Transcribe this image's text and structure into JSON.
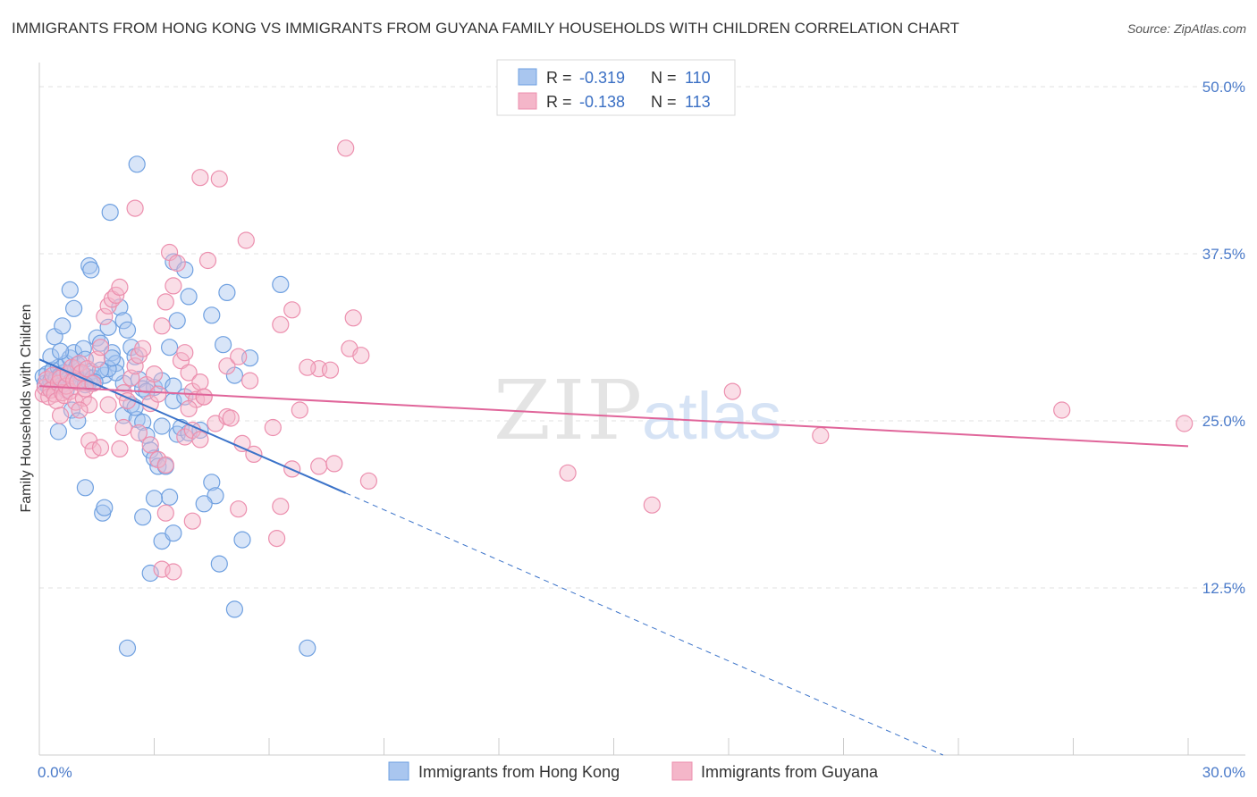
{
  "title": "IMMIGRANTS FROM HONG KONG VS IMMIGRANTS FROM GUYANA FAMILY HOUSEHOLDS WITH CHILDREN CORRELATION CHART",
  "source": "Source: ZipAtlas.com",
  "watermark": {
    "zip": "ZIP",
    "atlas": "atlas"
  },
  "stats_legend": [
    {
      "r_label": "R =",
      "r_value": "-0.319",
      "n_label": "N =",
      "n_value": "110",
      "color": "#a9c6ef"
    },
    {
      "r_label": "R =",
      "r_value": "-0.138",
      "n_label": "N =",
      "n_value": "113",
      "color": "#f4b6c9"
    }
  ],
  "chart_data": {
    "type": "scatter",
    "ylabel": "Family Households with Children",
    "xlabel": "",
    "xlim": [
      0,
      30
    ],
    "ylim": [
      0,
      52
    ],
    "x_tick_labels": [
      "0.0%",
      "30.0%"
    ],
    "y_ticks": [
      {
        "value": 12.5,
        "label": "12.5%"
      },
      {
        "value": 25,
        "label": "25.0%"
      },
      {
        "value": 37.5,
        "label": "37.5%"
      },
      {
        "value": 50,
        "label": "50.0%"
      }
    ],
    "grid": true,
    "legend_position": "bottom",
    "series": [
      {
        "name": "Immigrants from Hong Kong",
        "color": "#6fa0e0",
        "fill": "#a9c6ef",
        "trend": {
          "x0": 0,
          "y0": 29.6,
          "x1": 8,
          "y1": 19.6,
          "dash_x_end": 23.6,
          "dash_y_end": 0
        },
        "points": [
          [
            0.1,
            28.3
          ],
          [
            0.15,
            27.8
          ],
          [
            0.2,
            28.5
          ],
          [
            0.25,
            27.5
          ],
          [
            0.3,
            28.0
          ],
          [
            0.35,
            28.8
          ],
          [
            0.4,
            27.9
          ],
          [
            0.45,
            28.2
          ],
          [
            0.5,
            29.0
          ],
          [
            0.55,
            28.4
          ],
          [
            0.6,
            27.7
          ],
          [
            0.65,
            28.6
          ],
          [
            0.7,
            29.3
          ],
          [
            0.75,
            28.1
          ],
          [
            0.8,
            29.7
          ],
          [
            0.85,
            28.0
          ],
          [
            0.9,
            30.1
          ],
          [
            0.95,
            28.9
          ],
          [
            1.0,
            29.2
          ],
          [
            1.05,
            28.5
          ],
          [
            1.1,
            28.0
          ],
          [
            1.15,
            30.4
          ],
          [
            1.2,
            29.6
          ],
          [
            1.25,
            28.3
          ],
          [
            1.3,
            27.9
          ],
          [
            1.35,
            28.7
          ],
          [
            1.4,
            28.2
          ],
          [
            1.5,
            31.2
          ],
          [
            1.6,
            30.8
          ],
          [
            1.7,
            28.4
          ],
          [
            1.8,
            32.0
          ],
          [
            1.9,
            30.1
          ],
          [
            2.0,
            29.3
          ],
          [
            2.1,
            33.5
          ],
          [
            2.2,
            32.5
          ],
          [
            2.3,
            31.8
          ],
          [
            2.4,
            30.5
          ],
          [
            2.5,
            29.8
          ],
          [
            2.6,
            28.1
          ],
          [
            2.7,
            27.4
          ],
          [
            0.4,
            31.3
          ],
          [
            0.6,
            32.1
          ],
          [
            0.8,
            34.8
          ],
          [
            0.9,
            33.4
          ],
          [
            1.3,
            36.6
          ],
          [
            1.35,
            36.3
          ],
          [
            1.85,
            40.6
          ],
          [
            2.55,
            44.2
          ],
          [
            0.5,
            24.2
          ],
          [
            0.85,
            25.8
          ],
          [
            1.0,
            25.0
          ],
          [
            1.2,
            20.0
          ],
          [
            1.65,
            18.1
          ],
          [
            1.7,
            18.5
          ],
          [
            2.2,
            25.4
          ],
          [
            2.4,
            26.2
          ],
          [
            2.55,
            25.1
          ],
          [
            2.7,
            24.9
          ],
          [
            2.8,
            23.9
          ],
          [
            2.9,
            22.8
          ],
          [
            3.0,
            22.2
          ],
          [
            3.1,
            21.6
          ],
          [
            3.2,
            24.6
          ],
          [
            3.3,
            21.6
          ],
          [
            3.5,
            26.5
          ],
          [
            3.6,
            24.0
          ],
          [
            3.7,
            24.5
          ],
          [
            3.9,
            24.1
          ],
          [
            4.2,
            24.3
          ],
          [
            4.5,
            20.4
          ],
          [
            4.6,
            19.4
          ],
          [
            4.7,
            14.3
          ],
          [
            3.0,
            27.5
          ],
          [
            3.2,
            28.0
          ],
          [
            3.5,
            27.6
          ],
          [
            3.8,
            26.8
          ],
          [
            2.8,
            27.2
          ],
          [
            3.4,
            30.5
          ],
          [
            3.6,
            32.5
          ],
          [
            3.9,
            34.3
          ],
          [
            4.5,
            32.9
          ],
          [
            4.8,
            30.7
          ],
          [
            4.9,
            34.6
          ],
          [
            5.1,
            28.4
          ],
          [
            5.5,
            29.7
          ],
          [
            6.3,
            35.2
          ],
          [
            3.5,
            36.9
          ],
          [
            3.8,
            36.3
          ],
          [
            5.3,
            16.1
          ],
          [
            3.4,
            19.3
          ],
          [
            3.2,
            16.0
          ],
          [
            2.3,
            8.0
          ],
          [
            4.3,
            18.8
          ],
          [
            2.7,
            17.8
          ],
          [
            5.1,
            10.9
          ],
          [
            7.0,
            8.0
          ],
          [
            2.5,
            26.0
          ],
          [
            3.0,
            19.2
          ],
          [
            3.5,
            16.6
          ],
          [
            2.9,
            13.6
          ],
          [
            2.2,
            27.8
          ],
          [
            2.0,
            28.6
          ],
          [
            1.8,
            28.9
          ],
          [
            1.6,
            28.8
          ],
          [
            1.45,
            27.9
          ],
          [
            0.7,
            27.3
          ],
          [
            1.2,
            27.7
          ],
          [
            0.3,
            29.8
          ],
          [
            0.55,
            30.2
          ],
          [
            1.9,
            29.7
          ]
        ]
      },
      {
        "name": "Immigrants from Guyana",
        "color": "#ec8fae",
        "fill": "#f4b6c9",
        "trend": {
          "x0": 0,
          "y0": 27.6,
          "x1": 30,
          "y1": 23.1
        },
        "points": [
          [
            0.1,
            27.0
          ],
          [
            0.15,
            27.5
          ],
          [
            0.2,
            28.1
          ],
          [
            0.25,
            26.8
          ],
          [
            0.3,
            27.3
          ],
          [
            0.35,
            28.4
          ],
          [
            0.4,
            27.0
          ],
          [
            0.45,
            26.5
          ],
          [
            0.5,
            27.8
          ],
          [
            0.55,
            28.2
          ],
          [
            0.6,
            27.1
          ],
          [
            0.65,
            26.9
          ],
          [
            0.7,
            27.6
          ],
          [
            0.75,
            28.5
          ],
          [
            0.8,
            27.2
          ],
          [
            0.85,
            29.0
          ],
          [
            0.9,
            28.0
          ],
          [
            0.95,
            26.4
          ],
          [
            1.0,
            27.9
          ],
          [
            1.05,
            29.3
          ],
          [
            1.1,
            28.6
          ],
          [
            1.15,
            26.7
          ],
          [
            1.2,
            27.4
          ],
          [
            1.25,
            28.9
          ],
          [
            1.3,
            26.2
          ],
          [
            1.4,
            27.8
          ],
          [
            1.5,
            29.6
          ],
          [
            1.6,
            30.5
          ],
          [
            1.7,
            32.8
          ],
          [
            1.8,
            33.6
          ],
          [
            1.9,
            34.1
          ],
          [
            2.0,
            34.4
          ],
          [
            2.1,
            35.0
          ],
          [
            2.2,
            27.1
          ],
          [
            2.3,
            26.5
          ],
          [
            2.4,
            28.2
          ],
          [
            2.5,
            29.1
          ],
          [
            2.6,
            29.9
          ],
          [
            2.7,
            30.4
          ],
          [
            2.8,
            27.7
          ],
          [
            2.9,
            26.3
          ],
          [
            3.0,
            28.5
          ],
          [
            3.1,
            27.0
          ],
          [
            3.2,
            32.1
          ],
          [
            3.3,
            33.9
          ],
          [
            3.4,
            37.6
          ],
          [
            3.5,
            35.1
          ],
          [
            3.6,
            36.8
          ],
          [
            3.7,
            29.5
          ],
          [
            3.8,
            30.1
          ],
          [
            3.9,
            28.6
          ],
          [
            4.0,
            27.2
          ],
          [
            4.1,
            26.6
          ],
          [
            4.2,
            27.9
          ],
          [
            4.3,
            26.8
          ],
          [
            4.4,
            37.0
          ],
          [
            4.2,
            43.2
          ],
          [
            4.7,
            43.1
          ],
          [
            5.4,
            38.5
          ],
          [
            2.5,
            40.9
          ],
          [
            4.9,
            29.1
          ],
          [
            5.2,
            29.8
          ],
          [
            5.5,
            28.0
          ],
          [
            6.3,
            32.2
          ],
          [
            6.6,
            33.3
          ],
          [
            7.3,
            28.9
          ],
          [
            7.0,
            29.0
          ],
          [
            8.0,
            45.4
          ],
          [
            8.2,
            32.7
          ],
          [
            8.1,
            30.4
          ],
          [
            8.4,
            29.9
          ],
          [
            7.6,
            28.8
          ],
          [
            1.3,
            23.5
          ],
          [
            1.4,
            22.8
          ],
          [
            1.6,
            23.0
          ],
          [
            2.1,
            22.9
          ],
          [
            2.6,
            24.1
          ],
          [
            2.9,
            23.2
          ],
          [
            3.1,
            22.1
          ],
          [
            3.3,
            21.7
          ],
          [
            3.8,
            23.8
          ],
          [
            4.0,
            24.3
          ],
          [
            4.2,
            23.6
          ],
          [
            4.6,
            24.8
          ],
          [
            4.9,
            25.3
          ],
          [
            5.3,
            23.3
          ],
          [
            5.6,
            22.5
          ],
          [
            6.1,
            24.5
          ],
          [
            6.6,
            21.4
          ],
          [
            7.3,
            21.6
          ],
          [
            7.7,
            21.8
          ],
          [
            8.6,
            20.5
          ],
          [
            6.3,
            18.6
          ],
          [
            5.2,
            18.4
          ],
          [
            3.3,
            18.1
          ],
          [
            4.0,
            17.5
          ],
          [
            3.2,
            13.9
          ],
          [
            3.5,
            13.7
          ],
          [
            6.2,
            16.2
          ],
          [
            13.8,
            21.1
          ],
          [
            16.0,
            18.7
          ],
          [
            18.1,
            27.2
          ],
          [
            20.4,
            23.9
          ],
          [
            26.7,
            25.8
          ],
          [
            29.9,
            24.8
          ],
          [
            4.3,
            26.8
          ],
          [
            5.0,
            25.2
          ],
          [
            3.9,
            25.9
          ],
          [
            6.8,
            25.8
          ],
          [
            2.2,
            24.5
          ],
          [
            1.8,
            26.2
          ],
          [
            1.05,
            25.8
          ],
          [
            0.55,
            25.4
          ]
        ]
      }
    ]
  }
}
